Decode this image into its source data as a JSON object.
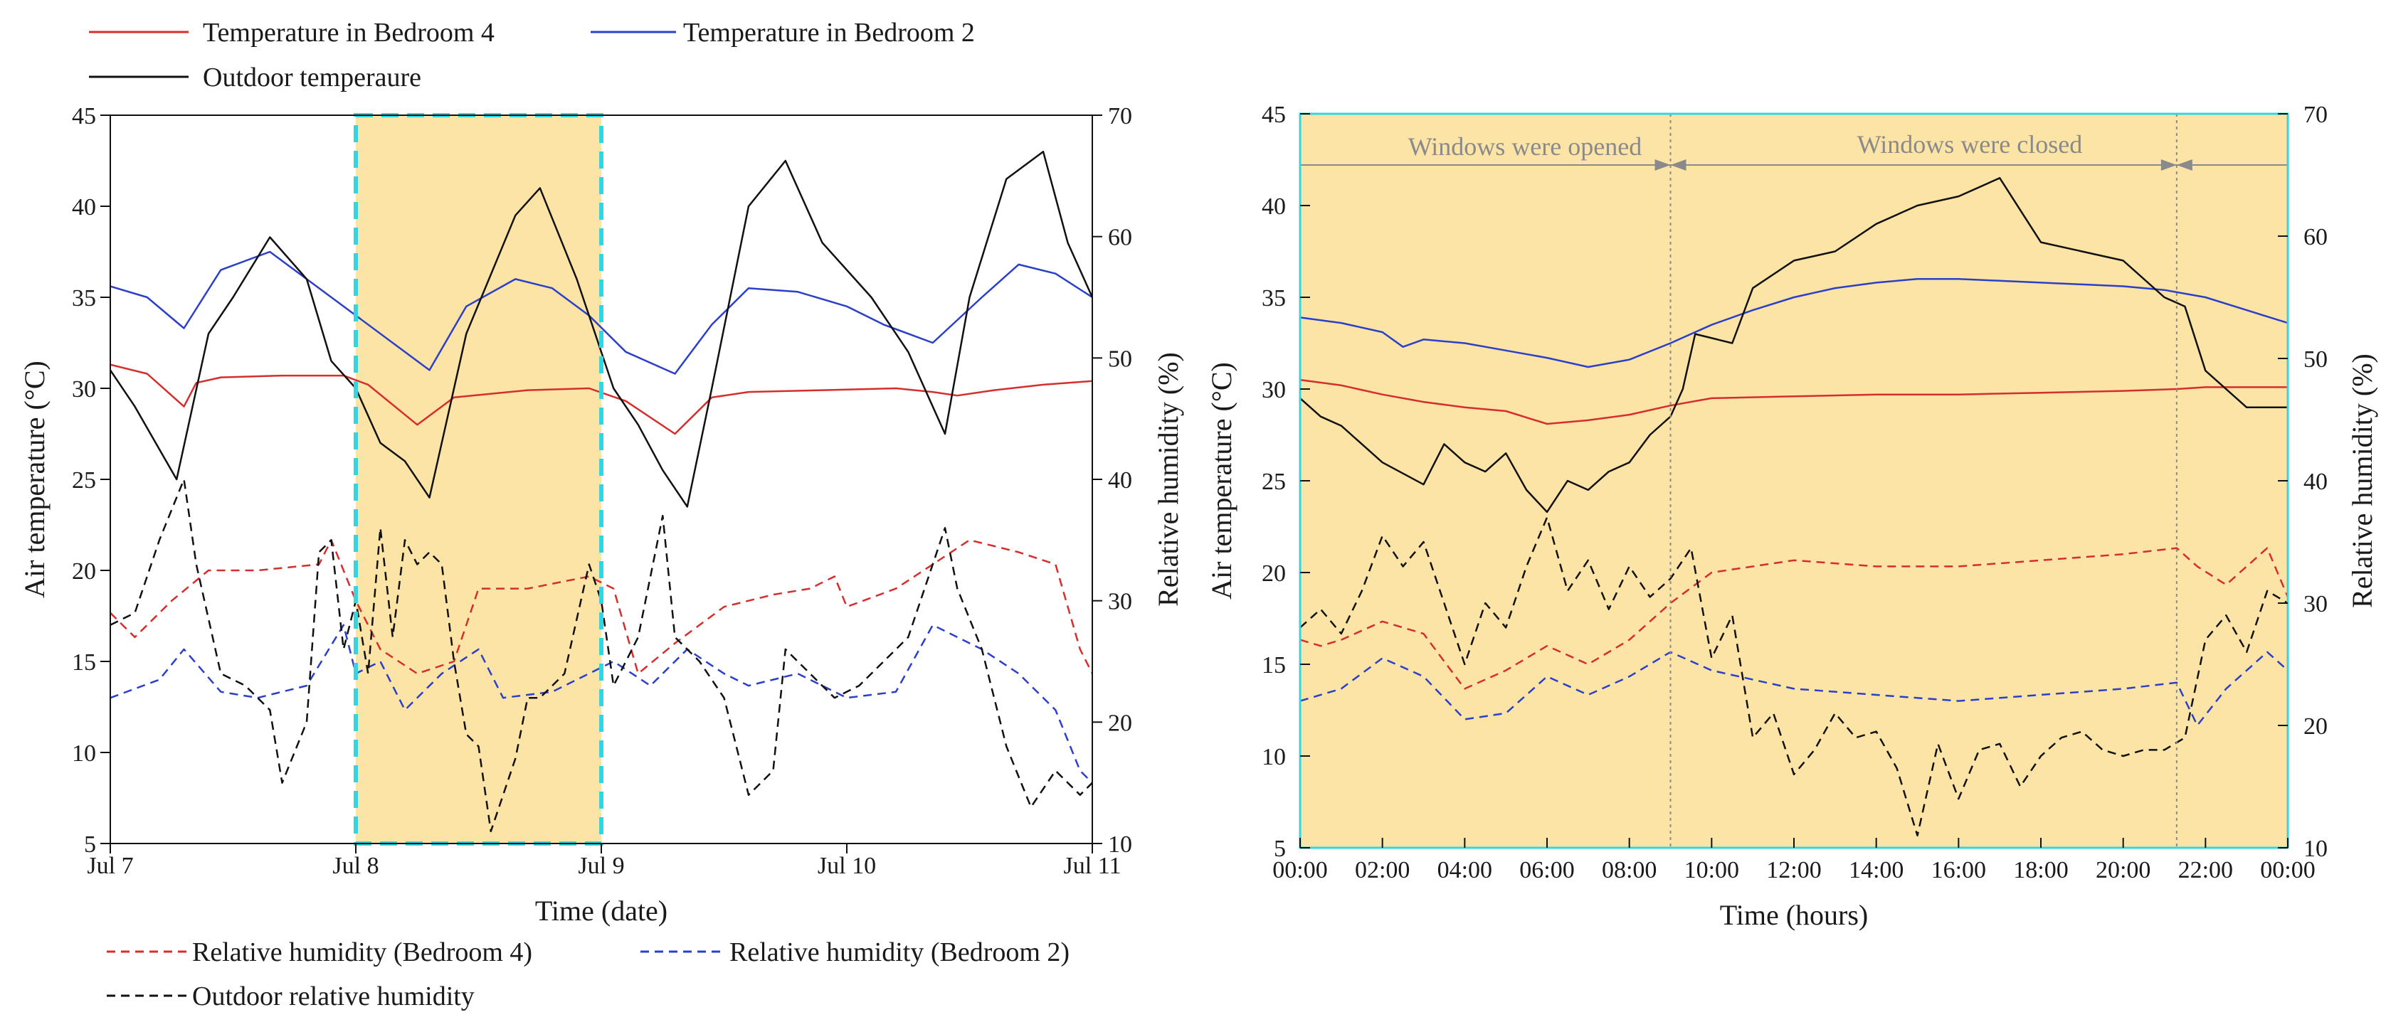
{
  "colors": {
    "red": "#d62d2d",
    "blue": "#2b3fc9",
    "black": "#111111",
    "highlight": "#fbe4a6",
    "cyan": "#33d6e0",
    "gray": "#8a8a8a"
  },
  "legend_top": {
    "temp_bedroom4": "Temperature in Bedroom 4",
    "temp_bedroom2": "Temperature in Bedroom 2",
    "outdoor_temp": "Outdoor temperaure"
  },
  "legend_bottom": {
    "rh_bedroom4": "Relative humidity (Bedroom 4)",
    "rh_bedroom2": "Relative humidity (Bedroom 2)",
    "outdoor_rh": "Outdoor relative humidity"
  },
  "chart_data": [
    {
      "type": "line",
      "xlabel": "Time (date)",
      "ylabel": "Air temperature (°C)",
      "y2label": "Relative humidity (%)",
      "xlim": [
        0,
        4
      ],
      "ylim": [
        5,
        45
      ],
      "y2lim": [
        10,
        70
      ],
      "xticks": [
        0,
        1,
        2,
        3,
        4
      ],
      "xticklabels": [
        "Jul 7",
        "Jul 8",
        "Jul 9",
        "Jul 10",
        "Jul 11"
      ],
      "yticks": [
        5,
        10,
        15,
        20,
        25,
        30,
        35,
        40,
        45
      ],
      "y2ticks": [
        10,
        20,
        30,
        40,
        50,
        60,
        70
      ],
      "highlight_x": [
        1,
        2
      ],
      "series": [
        {
          "name": "Temperature in Bedroom 4",
          "axis": "left",
          "style": "solid",
          "color": "red",
          "x": [
            0,
            0.15,
            0.3,
            0.35,
            0.45,
            0.7,
            0.95,
            1.05,
            1.25,
            1.4,
            1.7,
            1.95,
            2.1,
            2.3,
            2.45,
            2.6,
            2.9,
            3.2,
            3.35,
            3.45,
            3.6,
            3.8,
            4.0
          ],
          "y": [
            31.3,
            30.8,
            29.0,
            30.3,
            30.6,
            30.7,
            30.7,
            30.2,
            28.0,
            29.5,
            29.9,
            30.0,
            29.3,
            27.5,
            29.5,
            29.8,
            29.9,
            30.0,
            29.8,
            29.6,
            29.9,
            30.2,
            30.4
          ]
        },
        {
          "name": "Temperature in Bedroom 2",
          "axis": "left",
          "style": "solid",
          "color": "blue",
          "x": [
            0,
            0.15,
            0.3,
            0.45,
            0.65,
            0.8,
            0.95,
            1.15,
            1.3,
            1.45,
            1.65,
            1.8,
            1.95,
            2.1,
            2.3,
            2.45,
            2.6,
            2.8,
            3.0,
            3.15,
            3.35,
            3.55,
            3.7,
            3.85,
            4.0
          ],
          "y": [
            35.6,
            35.0,
            33.3,
            36.5,
            37.5,
            36.0,
            34.5,
            32.5,
            31.0,
            34.5,
            36.0,
            35.5,
            34.0,
            32.0,
            30.8,
            33.5,
            35.5,
            35.3,
            34.5,
            33.5,
            32.5,
            35.0,
            36.8,
            36.3,
            35.0
          ]
        },
        {
          "name": "Outdoor temperaure",
          "axis": "left",
          "style": "solid",
          "color": "black",
          "x": [
            0,
            0.1,
            0.27,
            0.4,
            0.5,
            0.65,
            0.8,
            0.9,
            1.0,
            1.1,
            1.2,
            1.3,
            1.45,
            1.65,
            1.75,
            1.9,
            2.05,
            2.15,
            2.25,
            2.35,
            2.45,
            2.6,
            2.75,
            2.9,
            3.1,
            3.25,
            3.4,
            3.5,
            3.65,
            3.8,
            3.9,
            4.0
          ],
          "y": [
            31.0,
            29.0,
            25.0,
            33.0,
            35.0,
            38.3,
            36.0,
            31.5,
            30.0,
            27.0,
            26.0,
            24.0,
            33.0,
            39.5,
            41.0,
            36.0,
            30.0,
            28.0,
            25.5,
            23.5,
            30.0,
            40.0,
            42.5,
            38.0,
            35.0,
            32.0,
            27.5,
            35.0,
            41.5,
            43.0,
            38.0,
            35.0
          ]
        },
        {
          "name": "Relative humidity (Bedroom 4)",
          "axis": "right",
          "style": "dashed",
          "color": "red",
          "x": [
            0,
            0.1,
            0.25,
            0.4,
            0.6,
            0.85,
            0.9,
            1.0,
            1.1,
            1.25,
            1.4,
            1.5,
            1.7,
            1.95,
            2.05,
            2.15,
            2.3,
            2.5,
            2.7,
            2.85,
            2.95,
            3.0,
            3.2,
            3.35,
            3.5,
            3.7,
            3.85,
            3.95,
            4.0
          ],
          "y": [
            29,
            27,
            30,
            32.5,
            32.5,
            33,
            35,
            30,
            26,
            24,
            25,
            31,
            31,
            32,
            31,
            24,
            26.5,
            29.5,
            30.5,
            31,
            32,
            29.5,
            31,
            33,
            35,
            34,
            33,
            26,
            24
          ]
        },
        {
          "name": "Relative humidity (Bedroom 2)",
          "axis": "right",
          "style": "dashed",
          "color": "blue",
          "x": [
            0,
            0.2,
            0.3,
            0.45,
            0.6,
            0.8,
            0.95,
            1.0,
            1.1,
            1.2,
            1.35,
            1.5,
            1.6,
            1.8,
            1.95,
            2.05,
            2.2,
            2.35,
            2.5,
            2.6,
            2.8,
            3.0,
            3.2,
            3.35,
            3.55,
            3.7,
            3.85,
            3.95,
            4.0
          ],
          "y": [
            22,
            23.5,
            26,
            22.5,
            22,
            23,
            28,
            24,
            25,
            21,
            24,
            26,
            22,
            22.5,
            24,
            25,
            23,
            26,
            24,
            23,
            24,
            22,
            22.5,
            28,
            26,
            24,
            21,
            16,
            15
          ]
        },
        {
          "name": "Outdoor relative humidity",
          "axis": "right",
          "style": "dashed",
          "color": "black",
          "x": [
            0,
            0.1,
            0.2,
            0.3,
            0.35,
            0.45,
            0.55,
            0.65,
            0.7,
            0.8,
            0.85,
            0.9,
            0.95,
            1.0,
            1.05,
            1.1,
            1.15,
            1.2,
            1.25,
            1.3,
            1.35,
            1.4,
            1.45,
            1.5,
            1.55,
            1.65,
            1.7,
            1.75,
            1.85,
            1.95,
            2.0,
            2.05,
            2.15,
            2.25,
            2.3,
            2.4,
            2.5,
            2.6,
            2.7,
            2.75,
            2.85,
            2.95,
            3.05,
            3.15,
            3.25,
            3.4,
            3.45,
            3.55,
            3.65,
            3.75,
            3.85,
            3.95,
            4.0
          ],
          "y": [
            28,
            29,
            35,
            40,
            33,
            24,
            23,
            21,
            15,
            20,
            34,
            35,
            26,
            30,
            24,
            36,
            27,
            35,
            33,
            34,
            33,
            25,
            19,
            18,
            11,
            17,
            22,
            22,
            24,
            33,
            30,
            23,
            27,
            37,
            27,
            25,
            22,
            14,
            16,
            26,
            24,
            22,
            23,
            25,
            27,
            36,
            31,
            26,
            18,
            13,
            16,
            14,
            15
          ]
        }
      ]
    },
    {
      "type": "line",
      "xlabel": "Time (hours)",
      "ylabel": "Air temperature (°C)",
      "y2label": "Relative humidity (%)",
      "xlim": [
        0,
        24
      ],
      "ylim": [
        5,
        45
      ],
      "y2lim": [
        10,
        70
      ],
      "xticks": [
        0,
        2,
        4,
        6,
        8,
        10,
        12,
        14,
        16,
        18,
        20,
        22,
        24
      ],
      "xticklabels": [
        "00:00",
        "02:00",
        "04:00",
        "06:00",
        "08:00",
        "10:00",
        "12:00",
        "14:00",
        "16:00",
        "18:00",
        "20:00",
        "22:00",
        "00:00"
      ],
      "yticks": [
        5,
        10,
        15,
        20,
        25,
        30,
        35,
        40,
        45
      ],
      "y2ticks": [
        10,
        20,
        30,
        40,
        50,
        60,
        70
      ],
      "markers_x": [
        9,
        21.3
      ],
      "annotations": [
        "Windows were opened",
        "Windows were closed"
      ],
      "series": [
        {
          "name": "Temperature in Bedroom 4",
          "axis": "left",
          "style": "solid",
          "color": "red",
          "x": [
            0,
            1,
            2,
            3,
            4,
            5,
            6,
            7,
            8,
            9,
            10,
            12,
            14,
            16,
            18,
            20,
            21.3,
            22,
            24
          ],
          "y": [
            30.5,
            30.2,
            29.7,
            29.3,
            29.0,
            28.8,
            28.1,
            28.3,
            28.6,
            29.1,
            29.5,
            29.6,
            29.7,
            29.7,
            29.8,
            29.9,
            30.0,
            30.1,
            30.1
          ]
        },
        {
          "name": "Temperature in Bedroom 2",
          "axis": "left",
          "style": "solid",
          "color": "blue",
          "x": [
            0,
            1,
            2,
            2.5,
            3,
            4,
            5,
            6,
            7,
            8,
            9,
            10,
            11,
            12,
            13,
            14,
            15,
            16,
            17,
            18,
            19,
            20,
            21,
            22,
            23,
            24
          ],
          "y": [
            33.9,
            33.6,
            33.1,
            32.3,
            32.7,
            32.5,
            32.1,
            31.7,
            31.2,
            31.6,
            32.5,
            33.5,
            34.3,
            35.0,
            35.5,
            35.8,
            36.0,
            36.0,
            35.9,
            35.8,
            35.7,
            35.6,
            35.4,
            35.0,
            34.3,
            33.6
          ]
        },
        {
          "name": "Outdoor temperaure",
          "axis": "left",
          "style": "solid",
          "color": "black",
          "x": [
            0,
            0.5,
            1,
            2,
            3,
            3.5,
            4,
            4.5,
            5,
            5.5,
            6,
            6.5,
            7,
            7.5,
            8,
            8.5,
            9,
            9.3,
            9.6,
            10.5,
            11,
            12,
            13,
            14,
            15,
            16,
            17,
            18,
            19,
            20,
            21,
            21.5,
            22,
            23,
            24
          ],
          "y": [
            29.5,
            28.5,
            28.0,
            26.0,
            24.8,
            27.0,
            26.0,
            25.5,
            26.5,
            24.5,
            23.3,
            25.0,
            24.5,
            25.5,
            26.0,
            27.5,
            28.5,
            30.0,
            33.0,
            32.5,
            35.5,
            37.0,
            37.5,
            39.0,
            40.0,
            40.5,
            41.5,
            38.0,
            37.5,
            37.0,
            35.0,
            34.5,
            31.0,
            29.0,
            29.0
          ]
        },
        {
          "name": "Relative humidity (Bedroom 4)",
          "axis": "right",
          "style": "dashed",
          "color": "red",
          "x": [
            0,
            0.5,
            1,
            2,
            3,
            4,
            5,
            6,
            7,
            8,
            9,
            10,
            12,
            14,
            16,
            18,
            20,
            21.3,
            21.8,
            22.5,
            23.5,
            24
          ],
          "y": [
            27,
            26.5,
            27,
            28.5,
            27.5,
            23,
            24.5,
            26.5,
            25,
            27,
            30,
            32.5,
            33.5,
            33,
            33,
            33.5,
            34,
            34.5,
            33,
            31.5,
            34.5,
            30.5
          ]
        },
        {
          "name": "Relative humidity (Bedroom 2)",
          "axis": "right",
          "style": "dashed",
          "color": "blue",
          "x": [
            0,
            1,
            2,
            3,
            4,
            5,
            6,
            7,
            8,
            9,
            10,
            12,
            14,
            16,
            18,
            20,
            21.3,
            21.8,
            22.5,
            23.5,
            24
          ],
          "y": [
            22,
            23,
            25.5,
            24,
            20.5,
            21,
            24,
            22.5,
            24,
            26,
            24.5,
            23,
            22.5,
            22,
            22.5,
            23,
            23.5,
            20,
            23,
            26,
            24.5
          ]
        },
        {
          "name": "Outdoor relative humidity",
          "axis": "right",
          "style": "dashed",
          "color": "black",
          "x": [
            0,
            0.5,
            1,
            1.5,
            2,
            2.5,
            3,
            3.5,
            4,
            4.5,
            5,
            5.5,
            6,
            6.5,
            7,
            7.5,
            8,
            8.5,
            9,
            9.5,
            10,
            10.5,
            11,
            11.5,
            12,
            12.5,
            13,
            13.5,
            14,
            14.5,
            15,
            15.5,
            16,
            16.5,
            17,
            17.5,
            18,
            18.5,
            19,
            19.5,
            20,
            20.5,
            21,
            21.5,
            22,
            22.5,
            23,
            23.5,
            24
          ],
          "y": [
            28,
            29.5,
            27.5,
            31,
            35.5,
            33,
            35,
            30,
            25,
            30,
            28,
            33,
            37,
            31,
            33.5,
            29.5,
            33,
            30.5,
            32,
            34.5,
            25.5,
            29,
            19,
            21,
            16,
            18,
            21,
            19,
            19.5,
            16.5,
            11,
            18.5,
            14,
            18,
            18.5,
            15,
            17.5,
            19,
            19.5,
            18,
            17.5,
            18,
            18,
            19,
            27,
            29,
            26,
            31,
            30
          ]
        }
      ]
    }
  ]
}
